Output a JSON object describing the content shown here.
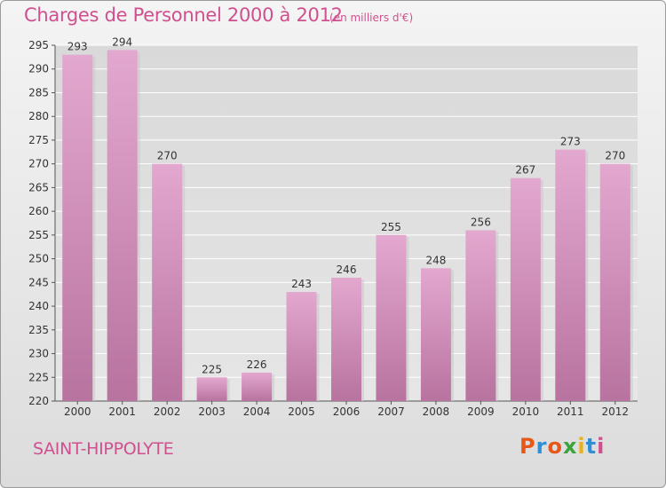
{
  "header": {
    "title": "Charges de Personnel 2000 à 2012",
    "unit": "(en milliers d'€)"
  },
  "footer": {
    "commune": "SAINT-HIPPOLYTE",
    "brand": "Proxiti",
    "brand_colors": [
      "#e8571a",
      "#2f8fd6",
      "#e8571a",
      "#3aa33a",
      "#e8b21a",
      "#2f8fd6",
      "#d0508f"
    ]
  },
  "colors": {
    "title": "#d0508f",
    "bar_top": "#e3a8cf",
    "bar_bottom": "#b8739f",
    "grid": "#ffffff"
  },
  "chart_data": {
    "type": "bar",
    "title": "Charges de Personnel 2000 à 2012",
    "xlabel": "",
    "ylabel": "",
    "categories": [
      "2000",
      "2001",
      "2002",
      "2003",
      "2004",
      "2005",
      "2006",
      "2007",
      "2008",
      "2009",
      "2010",
      "2011",
      "2012"
    ],
    "values": [
      293,
      294,
      270,
      225,
      226,
      243,
      246,
      255,
      248,
      256,
      267,
      273,
      270
    ],
    "ylim": [
      220,
      295
    ],
    "yticks": [
      220,
      225,
      230,
      235,
      240,
      245,
      250,
      255,
      260,
      265,
      270,
      275,
      280,
      285,
      290,
      295
    ],
    "grid": true,
    "data_labels": true
  }
}
